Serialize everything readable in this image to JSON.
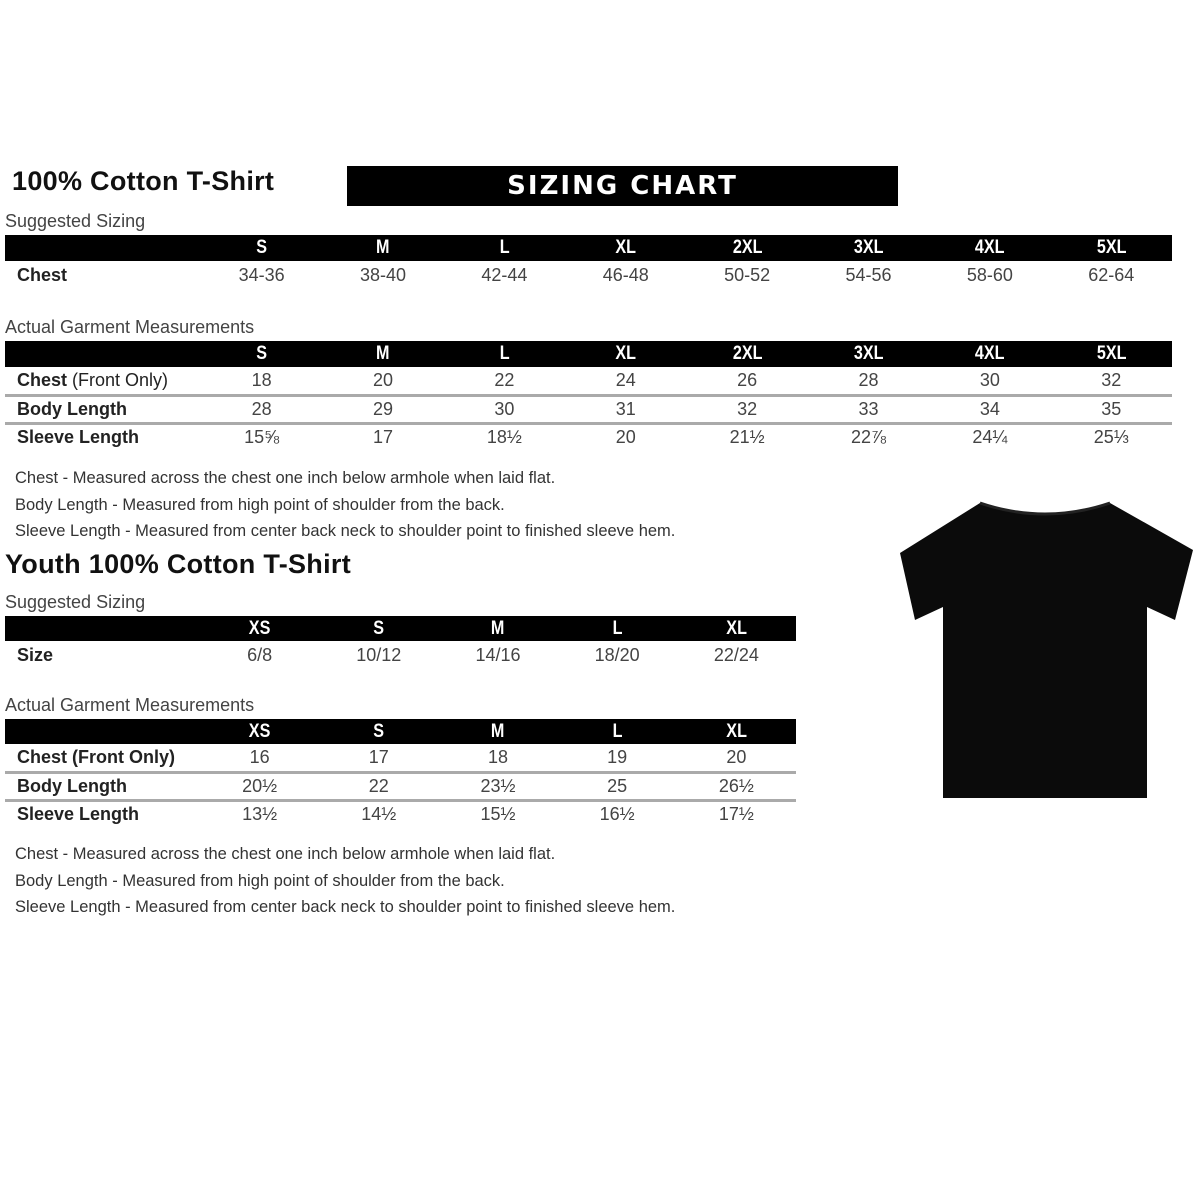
{
  "colors": {
    "header_bg": "#000000",
    "header_text": "#ffffff",
    "divider": "#aaaaaa"
  },
  "banner": "SIZING CHART",
  "adult": {
    "title": "100% Cotton T-Shirt",
    "suggested": {
      "label": "Suggested Sizing",
      "sizes": [
        "S",
        "M",
        "L",
        "XL",
        "2XL",
        "3XL",
        "4XL",
        "5XL"
      ],
      "rows": [
        {
          "label": "Chest",
          "values": [
            "34-36",
            "38-40",
            "42-44",
            "46-48",
            "50-52",
            "54-56",
            "58-60",
            "62-64"
          ]
        }
      ]
    },
    "actual": {
      "label": "Actual Garment Measurements",
      "sizes": [
        "S",
        "M",
        "L",
        "XL",
        "2XL",
        "3XL",
        "4XL",
        "5XL"
      ],
      "rows": [
        {
          "label": "Chest",
          "label_suffix": " (Front Only)",
          "values": [
            "18",
            "20",
            "22",
            "24",
            "26",
            "28",
            "30",
            "32"
          ]
        },
        {
          "label": "Body Length",
          "values": [
            "28",
            "29",
            "30",
            "31",
            "32",
            "33",
            "34",
            "35"
          ]
        },
        {
          "label": "Sleeve Length",
          "values": [
            "15⅝",
            "17",
            "18½",
            "20",
            "21½",
            "22⅞",
            "24¼",
            "25⅓"
          ]
        }
      ]
    },
    "notes": [
      "Chest - Measured across the chest one inch below armhole when laid flat.",
      "Body Length - Measured from high point of shoulder from the back.",
      "Sleeve Length - Measured from center back neck to shoulder point to finished sleeve hem."
    ]
  },
  "youth": {
    "title": "Youth 100% Cotton T-Shirt",
    "suggested": {
      "label": "Suggested Sizing",
      "sizes": [
        "XS",
        "S",
        "M",
        "L",
        "XL"
      ],
      "rows": [
        {
          "label": "Size",
          "values": [
            "6/8",
            "10/12",
            "14/16",
            "18/20",
            "22/24"
          ]
        }
      ]
    },
    "actual": {
      "label": "Actual Garment Measurements",
      "sizes": [
        "XS",
        "S",
        "M",
        "L",
        "XL"
      ],
      "rows": [
        {
          "label": "Chest (Front Only)",
          "values": [
            "16",
            "17",
            "18",
            "19",
            "20"
          ]
        },
        {
          "label": "Body Length",
          "values": [
            "20½",
            "22",
            "23½",
            "25",
            "26½"
          ]
        },
        {
          "label": "Sleeve Length",
          "values": [
            "13½",
            "14½",
            "15½",
            "16½",
            "17½"
          ]
        }
      ]
    },
    "notes": [
      "Chest - Measured across the chest one inch below armhole when laid flat.",
      "Body Length - Measured from high point of shoulder from the back.",
      "Sleeve Length - Measured from center back neck to shoulder point to finished sleeve hem."
    ]
  },
  "image": {
    "icon": "tshirt-icon",
    "color": "#000000"
  }
}
